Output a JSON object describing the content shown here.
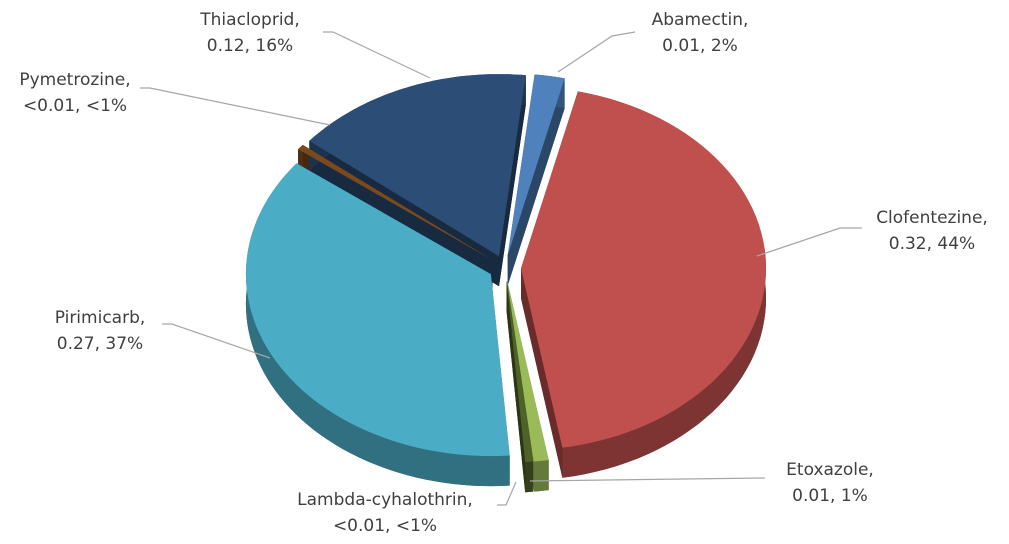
{
  "chart_data": {
    "type": "pie",
    "categories": [
      "Abamectin,",
      "Clofentezine,",
      "Etoxazole,",
      "Lambda-cyhalothrin,",
      "Pirimicarb,",
      "Pymetrozine,",
      "Thiacloprid,"
    ],
    "values": [
      2,
      44,
      1,
      0.5,
      37,
      0.5,
      16
    ],
    "value_labels": [
      "0.01, 2%",
      "0.32, 44%",
      "0.01, 1%",
      "<0.01, <1%",
      "0.27, 37%",
      "<0.01, <1%",
      "0.12, 16%"
    ],
    "colors": [
      "#4f81bd",
      "#c0504d",
      "#9bbb59",
      "#4f6228",
      "#4bacc6",
      "#7a4a1e",
      "#2c4d75"
    ]
  }
}
